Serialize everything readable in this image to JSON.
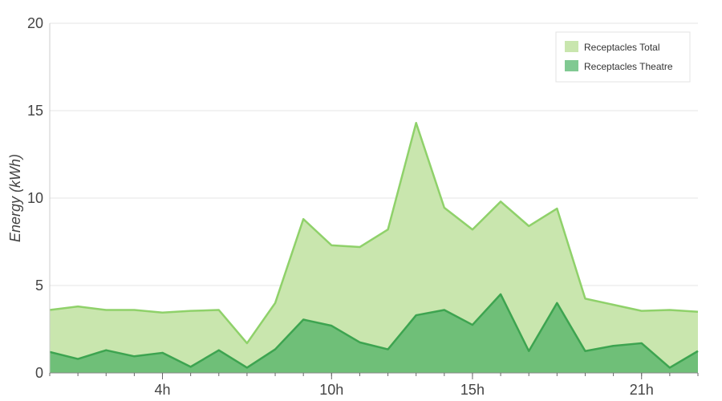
{
  "chart_data": {
    "type": "area",
    "title": "",
    "xlabel": "",
    "ylabel": "Energy (kWh)",
    "ylim": [
      0,
      20
    ],
    "xlim": [
      0,
      23
    ],
    "yticks": [
      0,
      5,
      10,
      15,
      20
    ],
    "xticks": [
      {
        "value": 4,
        "label": "4h"
      },
      {
        "value": 10,
        "label": "10h"
      },
      {
        "value": 15,
        "label": "15h"
      },
      {
        "value": 21,
        "label": "21h"
      }
    ],
    "x": [
      0,
      1,
      2,
      3,
      4,
      5,
      6,
      7,
      8,
      9,
      10,
      11,
      12,
      13,
      14,
      15,
      16,
      17,
      18,
      19,
      20,
      21,
      22,
      23
    ],
    "series": [
      {
        "name": "Receptacles Total",
        "fill": "#c9e6ae",
        "stroke": "#8fd16a",
        "legend_swatch": "#c9e6ae",
        "values": [
          3.6,
          3.8,
          3.6,
          3.6,
          3.45,
          3.55,
          3.6,
          1.7,
          4.0,
          8.8,
          7.3,
          7.2,
          8.2,
          14.3,
          9.45,
          8.2,
          9.8,
          8.4,
          9.4,
          4.25,
          3.9,
          3.55,
          3.6,
          3.5
        ]
      },
      {
        "name": "Receptacles Theatre",
        "fill": "#6fbf78",
        "stroke": "#3da450",
        "legend_swatch": "#80c992",
        "values": [
          1.2,
          0.8,
          1.3,
          0.95,
          1.15,
          0.35,
          1.3,
          0.3,
          1.35,
          3.05,
          2.7,
          1.75,
          1.35,
          3.3,
          3.6,
          2.75,
          4.5,
          1.25,
          4.0,
          1.25,
          1.55,
          1.7,
          0.3,
          1.25
        ]
      }
    ],
    "legend": [
      "Receptacles Total",
      "Receptacles Theatre"
    ],
    "legend_position": "top-right",
    "grid": true
  }
}
